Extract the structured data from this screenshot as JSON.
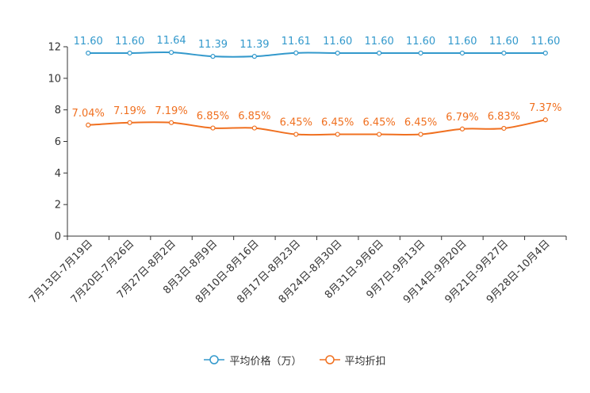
{
  "chart_data": {
    "type": "line",
    "categories": [
      "7月13日-7月19日",
      "7月20日-7月26日",
      "7月27日-8月2日",
      "8月3日-8月9日",
      "8月10日-8月16日",
      "8月17日-8月23日",
      "8月24日-8月30日",
      "8月31日-9月6日",
      "9月7日-9月13日",
      "9月14日-9月20日",
      "9月21日-9月27日",
      "9月28日-10月4日"
    ],
    "ylim": [
      0,
      12
    ],
    "yticks": [
      "0",
      "2",
      "4",
      "6",
      "8",
      "10",
      "12"
    ],
    "series": [
      {
        "name": "平均价格（万）",
        "color": "#3399cc",
        "values": [
          11.6,
          11.6,
          11.64,
          11.39,
          11.39,
          11.61,
          11.6,
          11.6,
          11.6,
          11.6,
          11.6,
          11.6
        ],
        "labels": [
          "11.60",
          "11.60",
          "11.64",
          "11.39",
          "11.39",
          "11.61",
          "11.60",
          "11.60",
          "11.60",
          "11.60",
          "11.60",
          "11.60"
        ]
      },
      {
        "name": "平均折扣",
        "color": "#f07020",
        "values": [
          7.04,
          7.19,
          7.19,
          6.85,
          6.85,
          6.45,
          6.45,
          6.45,
          6.45,
          6.79,
          6.83,
          7.37
        ],
        "labels": [
          "7.04%",
          "7.19%",
          "7.19%",
          "6.85%",
          "6.85%",
          "6.45%",
          "6.45%",
          "6.45%",
          "6.45%",
          "6.79%",
          "6.83%",
          "7.37%"
        ]
      }
    ]
  }
}
